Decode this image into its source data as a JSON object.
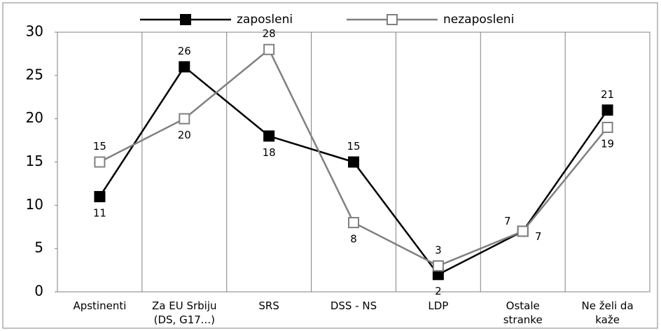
{
  "chart_data": {
    "type": "line",
    "categories": [
      [
        "Apstinenti"
      ],
      [
        "Za EU Srbiju",
        "(DS, G17...)"
      ],
      [
        "SRS"
      ],
      [
        "DSS - NS"
      ],
      [
        "LDP"
      ],
      [
        "Ostale",
        "stranke"
      ],
      [
        "Ne želi da",
        "kaže"
      ]
    ],
    "series": [
      {
        "name": "zaposleni",
        "color": "#000000",
        "marker_fill": "#000000",
        "values": [
          11,
          26,
          18,
          15,
          2,
          7,
          21
        ]
      },
      {
        "name": "nezaposleni",
        "color": "#808080",
        "marker_fill": "#ffffff",
        "values": [
          15,
          20,
          28,
          8,
          3,
          7,
          19
        ]
      }
    ],
    "ylim": [
      0,
      30
    ],
    "yticks": [
      0,
      5,
      10,
      15,
      20,
      25,
      30
    ],
    "grid": "x",
    "legend": "top"
  }
}
